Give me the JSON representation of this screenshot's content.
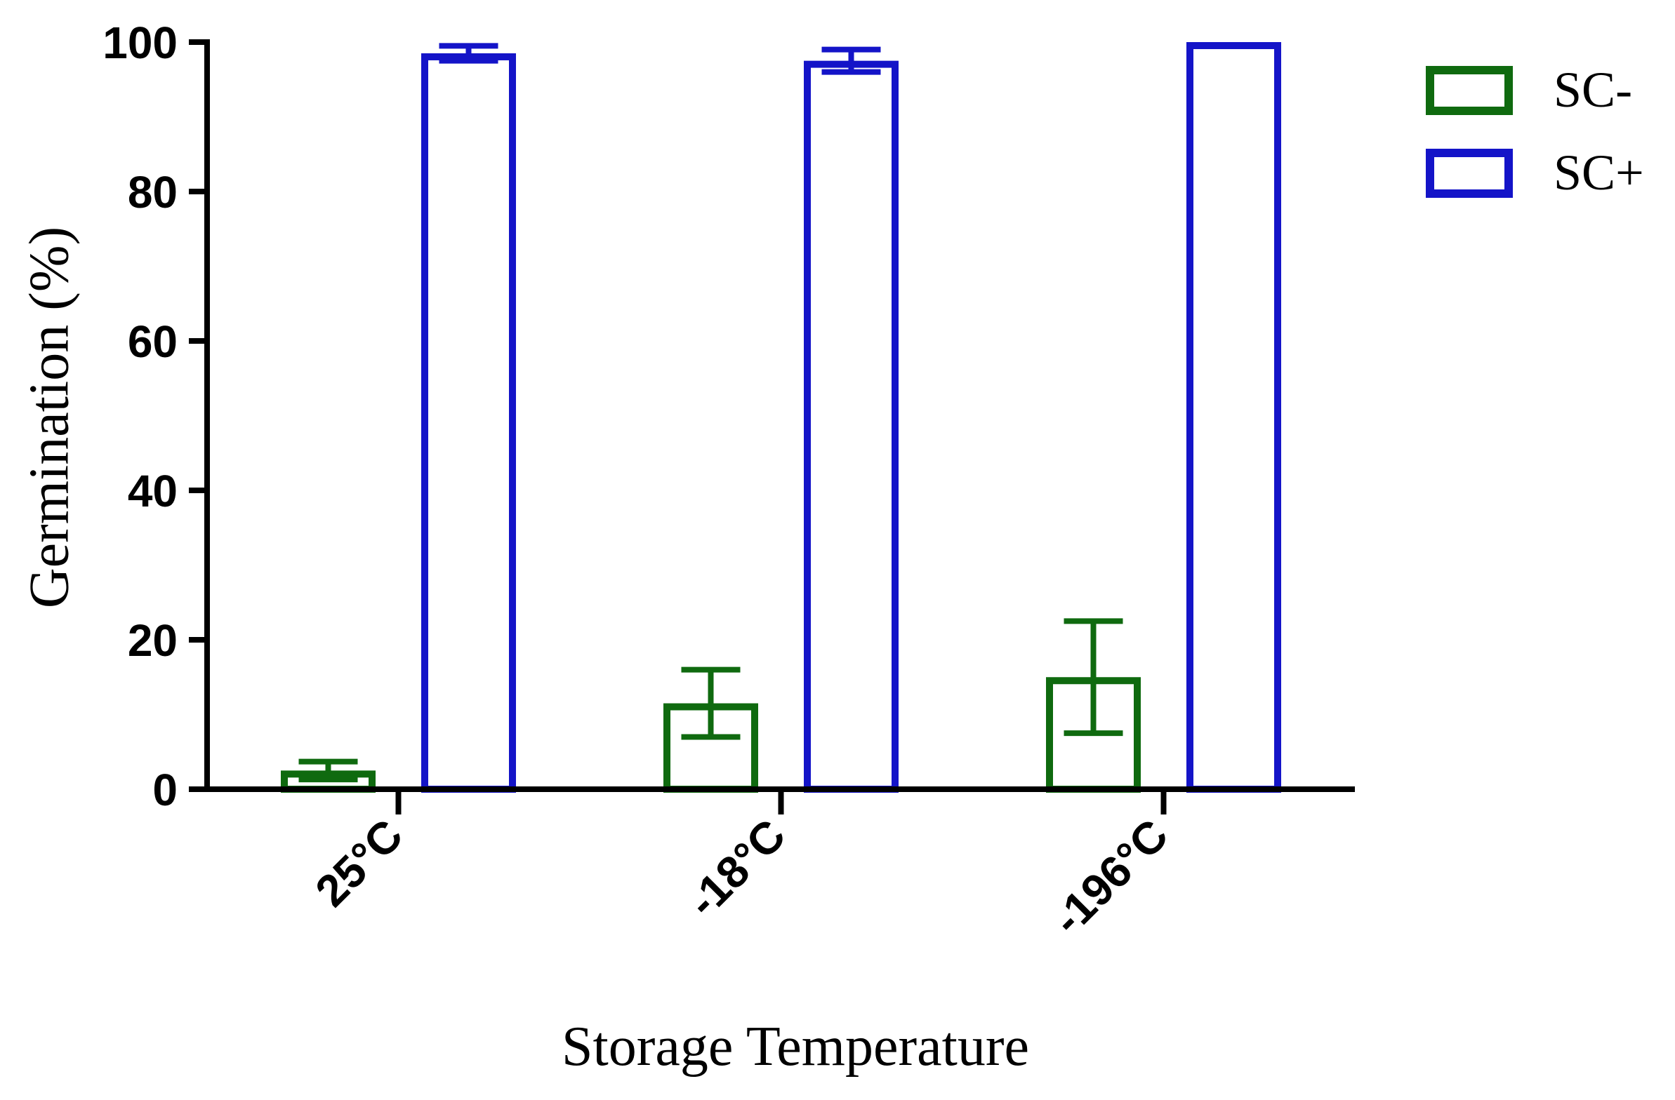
{
  "chart_data": {
    "type": "bar",
    "title": "",
    "xlabel": "Storage Temperature",
    "ylabel": "Germination (%)",
    "ylim": [
      0,
      100
    ],
    "yticks": [
      0,
      20,
      40,
      60,
      80,
      100
    ],
    "categories": [
      "25°C",
      "-18°C",
      "-196°C"
    ],
    "series": [
      {
        "name": "SC-",
        "color": "#0f6a0f",
        "values": [
          2.5,
          11.5,
          15.0
        ],
        "errors": [
          1.2,
          4.5,
          7.5
        ]
      },
      {
        "name": "SC+",
        "color": "#1414c8",
        "values": [
          98.5,
          97.5,
          100.0
        ],
        "errors": [
          1.0,
          1.5,
          0
        ]
      }
    ],
    "grid": false,
    "legend": "top-right",
    "bar_style": "outline"
  }
}
